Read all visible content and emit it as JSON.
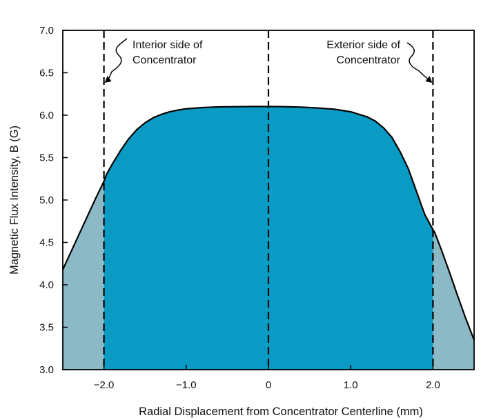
{
  "chart_data": {
    "type": "area",
    "xlabel": "Radial Displacement from Concentrator Centerline (mm)",
    "ylabel": "Magnetic Flux Intensity, B (G)",
    "xlim": [
      -2.5,
      2.5
    ],
    "ylim": [
      3.0,
      7.0
    ],
    "xticks": [
      -2.0,
      -1.0,
      0,
      1.0,
      2.0
    ],
    "xtick_labels": [
      "−2.0",
      "−1.0",
      "0",
      "1.0",
      "2.0"
    ],
    "yticks": [
      3.0,
      3.5,
      4.0,
      4.5,
      5.0,
      5.5,
      6.0,
      6.5,
      7.0
    ],
    "ytick_labels": [
      "3.0",
      "3.5",
      "4.0",
      "4.5",
      "5.0",
      "5.5",
      "6.0",
      "6.5",
      "7.0"
    ],
    "grid": false,
    "series": [
      {
        "x": [
          -2.5,
          -2.3,
          -2.1,
          -2.0,
          -1.97,
          -1.9,
          -1.8,
          -1.7,
          -1.6,
          -1.5,
          -1.4,
          -1.3,
          -1.2,
          -1.1,
          -1.0,
          -0.8,
          -0.6,
          -0.4,
          -0.2,
          0.0,
          0.2,
          0.4,
          0.6,
          0.8,
          1.0,
          1.2,
          1.3,
          1.4,
          1.5,
          1.6,
          1.7,
          1.8,
          1.9,
          2.0,
          2.02,
          2.1,
          2.2,
          2.3,
          2.4,
          2.5
        ],
        "y": [
          4.18,
          4.6,
          5.02,
          5.22,
          5.3,
          5.42,
          5.58,
          5.72,
          5.83,
          5.91,
          5.97,
          6.01,
          6.04,
          6.06,
          6.075,
          6.09,
          6.098,
          6.1,
          6.102,
          6.102,
          6.1,
          6.095,
          6.085,
          6.07,
          6.04,
          5.98,
          5.93,
          5.85,
          5.74,
          5.57,
          5.37,
          5.1,
          4.83,
          4.65,
          4.62,
          4.42,
          4.15,
          3.87,
          3.6,
          3.35
        ]
      }
    ],
    "vlines": [
      -2.0,
      0,
      2.0
    ],
    "fill_colors": {
      "outer": "#8cb9c6",
      "inner": "#0a9bc4"
    },
    "annotations": [
      {
        "lines": [
          "Interior side of",
          "Concentrator"
        ],
        "points_to_x": -2.0
      },
      {
        "lines": [
          "Exterior side of",
          "Concentrator"
        ],
        "points_to_x": 2.0
      }
    ]
  }
}
